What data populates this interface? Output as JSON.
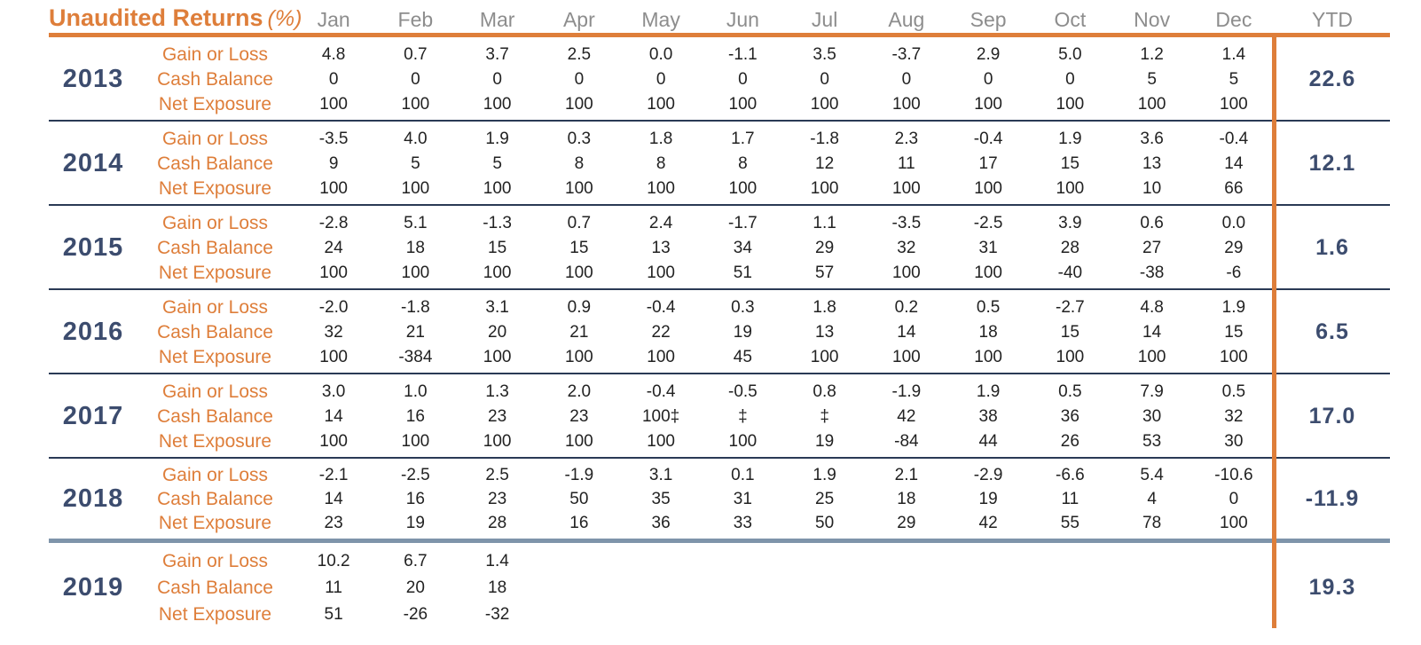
{
  "header": {
    "title": "Unaudited Returns",
    "title_suffix": "(%)",
    "months": [
      "Jan",
      "Feb",
      "Mar",
      "Apr",
      "May",
      "Jun",
      "Jul",
      "Aug",
      "Sep",
      "Oct",
      "Nov",
      "Dec"
    ],
    "ytd_label": "YTD"
  },
  "row_labels": {
    "gain": "Gain or Loss",
    "cash": "Cash Balance",
    "net": "Net Exposure"
  },
  "colors": {
    "orange": "#DE7E3A",
    "navy": "#3C4C6E",
    "slate": "#7E94AA",
    "gray": "#8D8D8D",
    "ink": "#222222",
    "sep": "#2A3A55"
  },
  "years": [
    {
      "year": "2013",
      "separator": "thin",
      "ytd": "22.6",
      "gain": [
        "4.8",
        "0.7",
        "3.7",
        "2.5",
        "0.0",
        "-1.1",
        "3.5",
        "-3.7",
        "2.9",
        "5.0",
        "1.2",
        "1.4"
      ],
      "cash": [
        "0",
        "0",
        "0",
        "0",
        "0",
        "0",
        "0",
        "0",
        "0",
        "0",
        "5",
        "5"
      ],
      "net": [
        "100",
        "100",
        "100",
        "100",
        "100",
        "100",
        "100",
        "100",
        "100",
        "100",
        "100",
        "100"
      ]
    },
    {
      "year": "2014",
      "separator": "thin",
      "ytd": "12.1",
      "gain": [
        "-3.5",
        "4.0",
        "1.9",
        "0.3",
        "1.8",
        "1.7",
        "-1.8",
        "2.3",
        "-0.4",
        "1.9",
        "3.6",
        "-0.4"
      ],
      "cash": [
        "9",
        "5",
        "5",
        "8",
        "8",
        "8",
        "12",
        "11",
        "17",
        "15",
        "13",
        "14"
      ],
      "net": [
        "100",
        "100",
        "100",
        "100",
        "100",
        "100",
        "100",
        "100",
        "100",
        "100",
        "10",
        "66"
      ]
    },
    {
      "year": "2015",
      "separator": "thin",
      "ytd": "1.6",
      "gain": [
        "-2.8",
        "5.1",
        "-1.3",
        "0.7",
        "2.4",
        "-1.7",
        "1.1",
        "-3.5",
        "-2.5",
        "3.9",
        "0.6",
        "0.0"
      ],
      "cash": [
        "24",
        "18",
        "15",
        "15",
        "13",
        "34",
        "29",
        "32",
        "31",
        "28",
        "27",
        "29"
      ],
      "net": [
        "100",
        "100",
        "100",
        "100",
        "100",
        "51",
        "57",
        "100",
        "100",
        "-40",
        "-38",
        "-6"
      ]
    },
    {
      "year": "2016",
      "separator": "thin",
      "ytd": "6.5",
      "gain": [
        "-2.0",
        "-1.8",
        "3.1",
        "0.9",
        "-0.4",
        "0.3",
        "1.8",
        "0.2",
        "0.5",
        "-2.7",
        "4.8",
        "1.9"
      ],
      "cash": [
        "32",
        "21",
        "20",
        "21",
        "22",
        "19",
        "13",
        "14",
        "18",
        "15",
        "14",
        "15"
      ],
      "net": [
        "100",
        "-384",
        "100",
        "100",
        "100",
        "45",
        "100",
        "100",
        "100",
        "100",
        "100",
        "100"
      ]
    },
    {
      "year": "2017",
      "separator": "thin",
      "ytd": "17.0",
      "gain": [
        "3.0",
        "1.0",
        "1.3",
        "2.0",
        "-0.4",
        "-0.5",
        "0.8",
        "-1.9",
        "1.9",
        "0.5",
        "7.9",
        "0.5"
      ],
      "cash": [
        "14",
        "16",
        "23",
        "23",
        "100‡",
        "‡",
        "‡",
        "42",
        "38",
        "36",
        "30",
        "32"
      ],
      "net": [
        "100",
        "100",
        "100",
        "100",
        "100",
        "100",
        "19",
        "-84",
        "44",
        "26",
        "53",
        "30"
      ]
    },
    {
      "year": "2018",
      "separator": "thick",
      "ytd": "-11.9",
      "gain": [
        "-2.1",
        "-2.5",
        "2.5",
        "-1.9",
        "3.1",
        "0.1",
        "1.9",
        "2.1",
        "-2.9",
        "-6.6",
        "5.4",
        "-10.6"
      ],
      "cash": [
        "14",
        "16",
        "23",
        "50",
        "35",
        "31",
        "25",
        "18",
        "19",
        "11",
        "4",
        "0"
      ],
      "net": [
        "23",
        "19",
        "28",
        "16",
        "36",
        "33",
        "50",
        "29",
        "42",
        "55",
        "78",
        "100"
      ]
    },
    {
      "year": "2019",
      "separator": "none",
      "ytd": "19.3",
      "gain": [
        "10.2",
        "6.7",
        "1.4",
        "",
        "",
        "",
        "",
        "",
        "",
        "",
        "",
        ""
      ],
      "cash": [
        "11",
        "20",
        "18",
        "",
        "",
        "",
        "",
        "",
        "",
        "",
        "",
        ""
      ],
      "net": [
        "51",
        "-26",
        "-32",
        "",
        "",
        "",
        "",
        "",
        "",
        "",
        "",
        ""
      ]
    }
  ]
}
